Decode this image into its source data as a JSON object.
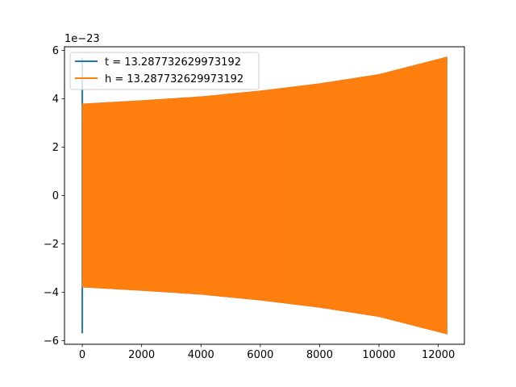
{
  "chart_data": {
    "type": "line",
    "offset_label": "1e−23",
    "xlim": [
      -600,
      12880
    ],
    "ylim": [
      -6.15,
      6.15
    ],
    "xticks": [
      0,
      2000,
      4000,
      6000,
      8000,
      10000,
      12000
    ],
    "yticks": [
      -6,
      -4,
      -2,
      0,
      2,
      4,
      6
    ],
    "legend_position": "upper-left",
    "grid": false,
    "series": [
      {
        "name": "t = 13.287732629973192",
        "color": "#1f77b4",
        "x_range": [
          0,
          12290
        ],
        "initial_spike": {
          "x": 0,
          "max": 5.7,
          "min": -5.7
        },
        "envelope": [
          [
            0,
            3.78
          ],
          [
            2000,
            3.92
          ],
          [
            4000,
            4.08
          ],
          [
            6000,
            4.32
          ],
          [
            8000,
            4.62
          ],
          [
            10000,
            5.0
          ],
          [
            12290,
            5.72
          ]
        ]
      },
      {
        "name": "h = 13.287732629973192",
        "color": "#ff7f0e",
        "x_range": [
          0,
          12290
        ],
        "envelope": [
          [
            0,
            3.78
          ],
          [
            2000,
            3.92
          ],
          [
            4000,
            4.08
          ],
          [
            6000,
            4.32
          ],
          [
            8000,
            4.62
          ],
          [
            10000,
            5.0
          ],
          [
            12290,
            5.72
          ]
        ]
      }
    ]
  }
}
